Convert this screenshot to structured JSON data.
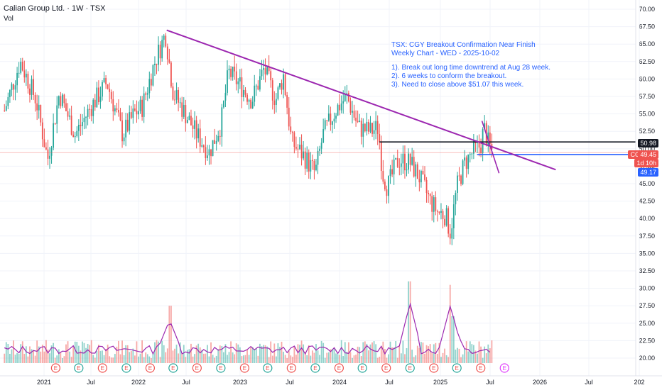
{
  "header": {
    "title": "Calian Group Ltd. · 1W · TSX",
    "volume_label": "Vol"
  },
  "annotation": {
    "line1": "TSX: CGY Breakout Confirmation Near Finish",
    "line2": "Weekly Chart  - WED - 2025-10-02",
    "line3": "1). Break out long time downtrend at Aug 28 week.",
    "line4": "2). 6 weeks to conform the breakout.",
    "line5": "3). Need to close above $51.07 this week."
  },
  "price_labels": {
    "resistance": "50.98",
    "symbol": "CGY",
    "last": "49.45",
    "countdown": "1d 10h",
    "blue_level": "49.17"
  },
  "colors": {
    "up": "#26a69a",
    "down": "#ef5350",
    "trendline": "#9c27b0",
    "resistance": "#131722",
    "support": "#2962ff",
    "note": "#2962ff"
  },
  "chart_data": {
    "type": "candlestick",
    "symbol": "CGY",
    "interval": "1W",
    "exchange": "TSX",
    "yaxis_ticks": [
      "70.00",
      "67.50",
      "65.00",
      "62.50",
      "60.00",
      "57.50",
      "55.00",
      "52.50",
      "50.00",
      "47.50",
      "45.00",
      "42.50",
      "40.00",
      "37.50",
      "35.00",
      "32.50",
      "30.00",
      "27.50",
      "25.00",
      "22.50",
      "20.00"
    ],
    "xaxis_ticks": [
      "2021",
      "Jul",
      "2022",
      "Jul",
      "2023",
      "Jul",
      "2024",
      "Jul",
      "2025",
      "Jul",
      "2026",
      "Jul",
      "202"
    ],
    "ylim": [
      18.6,
      71.0
    ],
    "price_series": [
      [
        "2020-08-01",
        55.5
      ],
      [
        "2020-10-01",
        62.5
      ],
      [
        "2020-12-01",
        57.0
      ],
      [
        "2021-01-15",
        48.5
      ],
      [
        "2021-03-01",
        58.0
      ],
      [
        "2021-05-01",
        52.0
      ],
      [
        "2021-07-01",
        56.0
      ],
      [
        "2021-09-01",
        59.5
      ],
      [
        "2021-11-01",
        52.0
      ],
      [
        "2021-12-15",
        55.0
      ],
      [
        "2022-01-15",
        56.0
      ],
      [
        "2022-03-01",
        62.0
      ],
      [
        "2022-04-15",
        66.5
      ],
      [
        "2022-05-15",
        58.0
      ],
      [
        "2022-07-01",
        55.0
      ],
      [
        "2022-08-15",
        52.0
      ],
      [
        "2022-10-01",
        49.5
      ],
      [
        "2022-11-15",
        53.5
      ],
      [
        "2022-12-15",
        61.0
      ],
      [
        "2023-02-01",
        59.0
      ],
      [
        "2023-03-15",
        57.0
      ],
      [
        "2023-05-01",
        61.5
      ],
      [
        "2023-06-15",
        57.0
      ],
      [
        "2023-07-15",
        60.5
      ],
      [
        "2023-08-15",
        51.0
      ],
      [
        "2023-10-01",
        49.0
      ],
      [
        "2023-11-15",
        46.5
      ],
      [
        "2023-12-15",
        52.0
      ],
      [
        "2024-02-01",
        55.5
      ],
      [
        "2024-03-15",
        57.5
      ],
      [
        "2024-05-01",
        53.0
      ],
      [
        "2024-06-15",
        52.5
      ],
      [
        "2024-07-15",
        53.0
      ],
      [
        "2024-08-01",
        46.5
      ],
      [
        "2024-08-20",
        44.5
      ],
      [
        "2024-10-01",
        48.5
      ],
      [
        "2024-11-15",
        48.0
      ],
      [
        "2024-12-20",
        46.0
      ],
      [
        "2025-02-01",
        42.5
      ],
      [
        "2025-03-01",
        41.0
      ],
      [
        "2025-04-01",
        40.5
      ],
      [
        "2025-04-20",
        38.0
      ],
      [
        "2025-05-15",
        44.5
      ],
      [
        "2025-06-15",
        48.0
      ],
      [
        "2025-07-15",
        49.5
      ],
      [
        "2025-08-15",
        50.5
      ],
      [
        "2025-08-28",
        53.0
      ],
      [
        "2025-09-15",
        50.5
      ],
      [
        "2025-10-02",
        49.45
      ]
    ],
    "volume_axis_note": "volume pane shares right axis labels 32.50–20.00",
    "volume_peaks": [
      [
        "2022-05-01",
        27.5
      ],
      [
        "2024-11-15",
        31.0
      ],
      [
        "2025-04-20",
        30.5
      ],
      [
        "2025-05-01",
        26.0
      ]
    ],
    "lines": {
      "downtrend_start": [
        "2022-04-20",
        67.0
      ],
      "downtrend_end": [
        "2026-06-01",
        47.0
      ],
      "resistance_level": 50.98,
      "blue_level": 49.17,
      "last_price": 49.45
    }
  }
}
